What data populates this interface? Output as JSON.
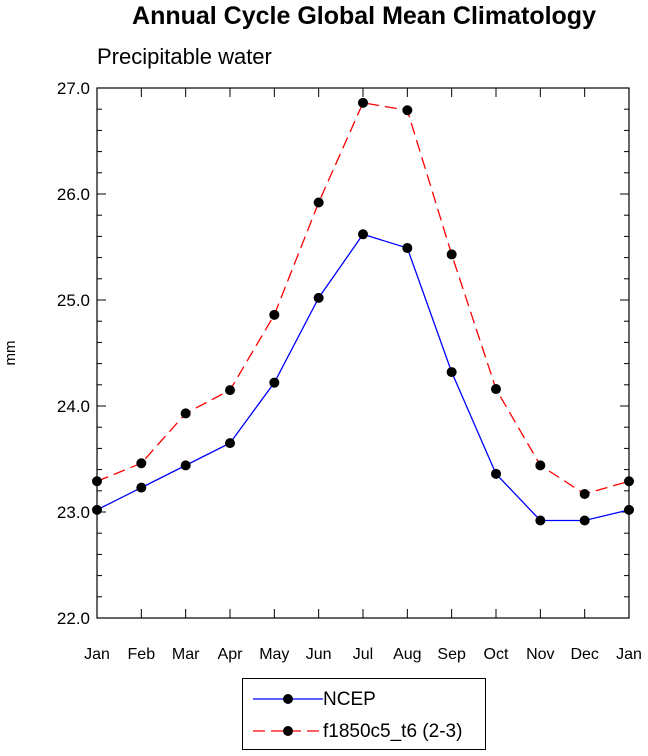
{
  "chart_data": {
    "type": "line",
    "title": "Annual Cycle Global Mean Climatology",
    "subtitle": "Precipitable water",
    "xlabel": "",
    "ylabel": "mm",
    "categories": [
      "Jan",
      "Feb",
      "Mar",
      "Apr",
      "May",
      "Jun",
      "Jul",
      "Aug",
      "Sep",
      "Oct",
      "Nov",
      "Dec",
      "Jan"
    ],
    "ylim": [
      22.0,
      27.0
    ],
    "yticks": [
      "22.0",
      "23.0",
      "24.0",
      "25.0",
      "26.0",
      "27.0"
    ],
    "grid": false,
    "legend_position": "bottom",
    "series": [
      {
        "name": "NCEP",
        "color": "#0000ff",
        "dash": "solid",
        "values": [
          23.02,
          23.23,
          23.44,
          23.65,
          24.22,
          25.02,
          25.62,
          25.49,
          24.32,
          23.36,
          22.92,
          22.92,
          23.02
        ]
      },
      {
        "name": "f1850c5_t6 (2-3)",
        "color": "#ff0000",
        "dash": "dashed",
        "values": [
          23.29,
          23.46,
          23.93,
          24.15,
          24.86,
          25.92,
          26.86,
          26.79,
          25.43,
          24.16,
          23.44,
          23.17,
          23.29
        ]
      }
    ]
  }
}
